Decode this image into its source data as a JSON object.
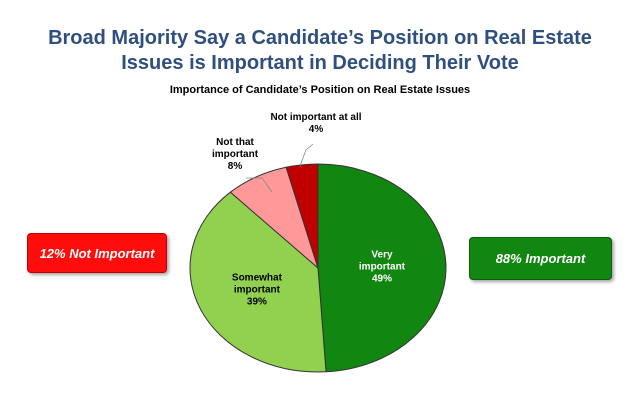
{
  "header": {
    "title_line1": "Broad Majority Say a Candidate’s Position on Real Estate",
    "title_line2": "Issues is Important in Deciding Their Vote"
  },
  "callouts": {
    "left": "12% Not Important",
    "right": "88% Important"
  },
  "colors": {
    "title": "#2f4f7f",
    "very_important": "#118611",
    "somewhat_important": "#92d050",
    "not_that_important": "#ff9999",
    "not_important_at_all": "#c00000",
    "callout_left": "#ff0d0d",
    "callout_right": "#118611"
  },
  "chart_data": {
    "type": "pie",
    "title": "Importance of Candidate’s Position on Real Estate Issues",
    "slices": [
      {
        "label_lines": [
          "Very",
          "important"
        ],
        "value": 49,
        "value_label": "49%",
        "color": "#118611",
        "text_color": "#ffffff"
      },
      {
        "label_lines": [
          "Somewhat",
          "important"
        ],
        "value": 39,
        "value_label": "39%",
        "color": "#92d050",
        "text_color": "#000000"
      },
      {
        "label_lines": [
          "Not that",
          "important"
        ],
        "value": 8,
        "value_label": "8%",
        "color": "#ff9999",
        "text_color": "#000000"
      },
      {
        "label_lines": [
          "Not important at all"
        ],
        "value": 4,
        "value_label": "4%",
        "color": "#c00000",
        "text_color": "#000000"
      }
    ]
  }
}
